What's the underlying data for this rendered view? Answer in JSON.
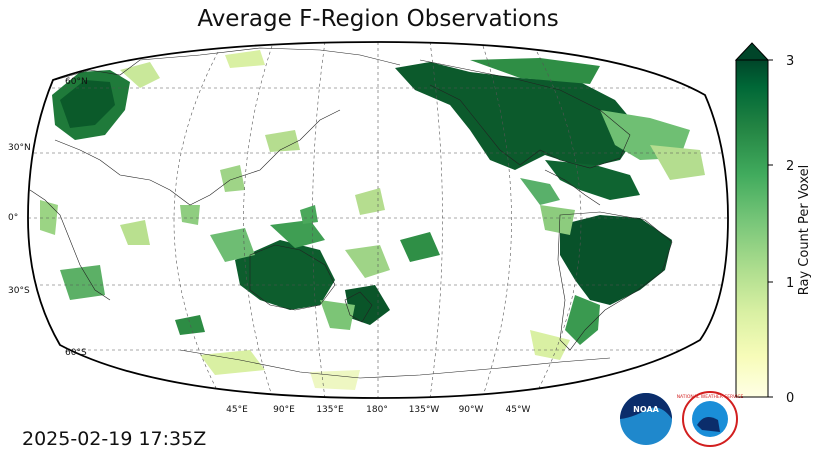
{
  "title": "Average F-Region Observations",
  "timestamp": "2025-02-19 17:35Z",
  "projection": "Robinson, centered 180°",
  "graticule": {
    "lat_labels": [
      "60°N",
      "30°N",
      "0°",
      "30°S",
      "60°S"
    ],
    "lon_labels": [
      "45°E",
      "90°E",
      "135°E",
      "180°",
      "135°W",
      "90°W",
      "45°W"
    ]
  },
  "colorbar": {
    "label": "Ray Count Per Voxel",
    "ticks": [
      "0",
      "1",
      "2",
      "3"
    ],
    "range": [
      0,
      3
    ],
    "extend": "max",
    "colormap": "YlGn",
    "colors": [
      "#ffffe5",
      "#f7fcb9",
      "#d9f0a3",
      "#addd8e",
      "#78c679",
      "#41ab5d",
      "#238443",
      "#006837",
      "#004529"
    ]
  },
  "logos": {
    "noaa": "NOAA",
    "nws": "NATIONAL WEATHER SERVICE"
  }
}
